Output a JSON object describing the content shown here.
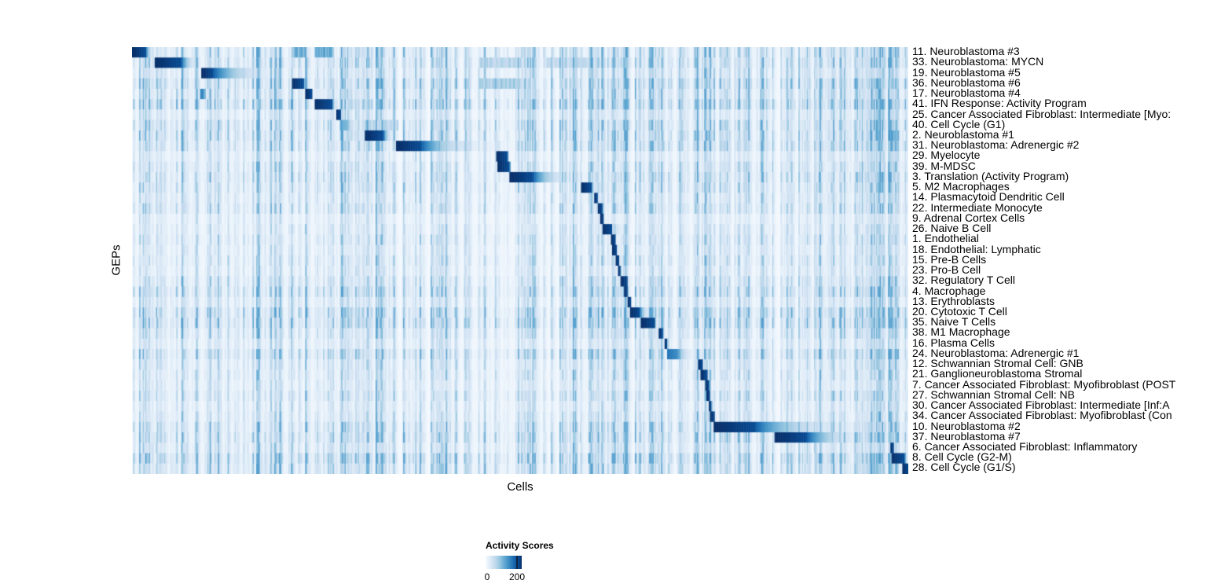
{
  "chart_data": {
    "type": "heatmap",
    "title": "",
    "xlabel": "Cells",
    "ylabel": "GEPs",
    "x_axis": {
      "label": "Cells",
      "tick_labels_shown": false
    },
    "y_axis": {
      "label": "GEPs",
      "row_labels_side": "right"
    },
    "legend": {
      "title": "Activity Scores",
      "position": "bottom-center",
      "tick_labels": [
        "0",
        "200"
      ],
      "min_value": 0,
      "tick_value": 200,
      "bar_max_value": 230
    },
    "colormap": {
      "name": "Blues",
      "low": "#f7fbff",
      "high": "#08306b",
      "stops": [
        "#f7fbff",
        "#deebf7",
        "#c6dbef",
        "#9ecae1",
        "#6baed6",
        "#4292c6",
        "#2171b5",
        "#08519c",
        "#08306b"
      ]
    },
    "grid": false,
    "n_rows": 41,
    "rows": [
      {
        "label": "11. Neuroblastoma #3",
        "block": [
          0.0,
          0.017,
          0.03
        ],
        "head": 1.0,
        "noise": 0.9,
        "extras": [
          [
            0.205,
            0.222,
            0.5
          ],
          [
            0.235,
            0.258,
            0.55
          ]
        ]
      },
      {
        "label": "33. Neuroblastoma: MYCN",
        "block": [
          0.028,
          0.063,
          0.091
        ],
        "head": 1.0,
        "noise": 1.0,
        "extras": [
          [
            0.447,
            0.5,
            0.3
          ],
          [
            0.533,
            0.6,
            0.25
          ]
        ]
      },
      {
        "label": "19. Neuroblastoma #5",
        "block": [
          0.089,
          0.104,
          0.205
        ],
        "head": 1.0,
        "noise": 0.8,
        "extras": []
      },
      {
        "label": "36. Neuroblastoma #6",
        "block": [
          0.205,
          0.22,
          0.228
        ],
        "head": 1.0,
        "noise": 1.1,
        "extras": [
          [
            0.447,
            0.5,
            0.35
          ]
        ]
      },
      {
        "label": "17. Neuroblastoma #4",
        "block": [
          0.223,
          0.231,
          0.233
        ],
        "head": 1.0,
        "noise": 0.9,
        "extras": [
          [
            0.087,
            0.095,
            0.6
          ]
        ]
      },
      {
        "label": "41. IFN Response: Activity Program",
        "block": [
          0.234,
          0.257,
          0.265
        ],
        "head": 1.0,
        "noise": 1.2,
        "extras": []
      },
      {
        "label": "25. Cancer Associated Fibroblast: Intermediate [Myo:",
        "block": [
          0.262,
          0.268,
          0.269
        ],
        "head": 1.0,
        "noise": 0.7,
        "extras": []
      },
      {
        "label": "40. Cell Cycle (G1)",
        "block": [
          0.267,
          0.277,
          0.298
        ],
        "head": 0.5,
        "noise": 1.0,
        "extras": [
          [
            0.3,
            0.342,
            0.3
          ]
        ]
      },
      {
        "label": "2. Neuroblastoma #1",
        "block": [
          0.299,
          0.323,
          0.339
        ],
        "head": 1.0,
        "noise": 1.0,
        "extras": [
          [
            0.974,
            0.984,
            0.55
          ]
        ]
      },
      {
        "label": "31. Neuroblastoma: Adrenergic #2",
        "block": [
          0.339,
          0.372,
          0.469
        ],
        "head": 1.0,
        "noise": 1.0,
        "extras": [
          [
            0.974,
            0.984,
            0.5
          ]
        ]
      },
      {
        "label": "29. Myelocyte",
        "block": [
          0.469,
          0.483,
          0.486
        ],
        "head": 1.0,
        "noise": 0.6,
        "extras": []
      },
      {
        "label": "39. M-MDSC",
        "block": [
          0.47,
          0.486,
          0.488
        ],
        "head": 1.0,
        "noise": 0.8,
        "extras": []
      },
      {
        "label": "3. Translation (Activity Program)",
        "block": [
          0.486,
          0.516,
          0.579
        ],
        "head": 1.0,
        "noise": 0.9,
        "extras": []
      },
      {
        "label": "5. M2 Macrophages",
        "block": [
          0.577,
          0.592,
          0.594
        ],
        "head": 1.0,
        "noise": 0.8,
        "extras": []
      },
      {
        "label": "14. Plasmacytoid Dendritic Cell",
        "block": [
          0.594,
          0.599,
          0.6
        ],
        "head": 1.0,
        "noise": 0.7,
        "extras": []
      },
      {
        "label": "22. Intermediate Monocyte",
        "block": [
          0.599,
          0.605,
          0.606
        ],
        "head": 1.0,
        "noise": 0.8,
        "extras": []
      },
      {
        "label": "9. Adrenal Cortex Cells",
        "block": [
          0.603,
          0.607,
          0.608
        ],
        "head": 1.0,
        "noise": 0.5,
        "extras": []
      },
      {
        "label": "26. Naive B Cell",
        "block": [
          0.605,
          0.617,
          0.618
        ],
        "head": 1.0,
        "noise": 0.6,
        "extras": []
      },
      {
        "label": "1. Endothelial",
        "block": [
          0.616,
          0.622,
          0.623
        ],
        "head": 1.0,
        "noise": 0.7,
        "extras": []
      },
      {
        "label": "18. Endothelial: Lymphatic",
        "block": [
          0.618,
          0.624,
          0.625
        ],
        "head": 1.0,
        "noise": 0.6,
        "extras": []
      },
      {
        "label": "15. Pre-B Cells",
        "block": [
          0.622,
          0.627,
          0.628
        ],
        "head": 1.0,
        "noise": 0.7,
        "extras": []
      },
      {
        "label": "23. Pro-B Cell",
        "block": [
          0.625,
          0.629,
          0.63
        ],
        "head": 1.0,
        "noise": 0.6,
        "extras": []
      },
      {
        "label": "32. Regulatory T Cell",
        "block": [
          0.629,
          0.638,
          0.639
        ],
        "head": 1.0,
        "noise": 0.8,
        "extras": []
      },
      {
        "label": "4. Macrophage",
        "block": [
          0.633,
          0.638,
          0.64
        ],
        "head": 1.0,
        "noise": 1.0,
        "extras": []
      },
      {
        "label": "13. Erythroblasts",
        "block": [
          0.638,
          0.642,
          0.643
        ],
        "head": 1.0,
        "noise": 0.7,
        "extras": []
      },
      {
        "label": "20. Cytotoxic T Cell",
        "block": [
          0.641,
          0.653,
          0.67
        ],
        "head": 1.0,
        "noise": 1.1,
        "extras": []
      },
      {
        "label": "35. Naive T Cells",
        "block": [
          0.655,
          0.673,
          0.676
        ],
        "head": 1.0,
        "noise": 1.1,
        "extras": []
      },
      {
        "label": "38. M1 Macrophage",
        "block": [
          0.677,
          0.683,
          0.686
        ],
        "head": 1.0,
        "noise": 0.8,
        "extras": []
      },
      {
        "label": "16. Plasma Cells",
        "block": [
          0.685,
          0.689,
          0.69
        ],
        "head": 1.0,
        "noise": 0.6,
        "extras": []
      },
      {
        "label": "24. Neuroblastoma: Adrenergic #1",
        "block": [
          0.688,
          0.702,
          0.731
        ],
        "head": 0.72,
        "noise": 1.0,
        "extras": []
      },
      {
        "label": "12. Schwannian Stromal Cell: GNB",
        "block": [
          0.728,
          0.734,
          0.735
        ],
        "head": 1.0,
        "noise": 0.7,
        "extras": []
      },
      {
        "label": "21. Ganglioneuroblastoma Stromal",
        "block": [
          0.732,
          0.74,
          0.741
        ],
        "head": 1.0,
        "noise": 0.7,
        "extras": []
      },
      {
        "label": "7. Cancer Associated Fibroblast: Myofibroblast (POST",
        "block": [
          0.738,
          0.743,
          0.744
        ],
        "head": 1.0,
        "noise": 0.6,
        "extras": []
      },
      {
        "label": "27. Schwannian Stromal Cell: NB",
        "block": [
          0.74,
          0.744,
          0.745
        ],
        "head": 1.0,
        "noise": 0.8,
        "extras": []
      },
      {
        "label": "30. Cancer Associated Fibroblast: Intermediate [Inf:A",
        "block": [
          0.742,
          0.746,
          0.747
        ],
        "head": 1.0,
        "noise": 0.6,
        "extras": []
      },
      {
        "label": "34. Cancer Associated Fibroblast: Myofibroblast (Con",
        "block": [
          0.744,
          0.75,
          0.751
        ],
        "head": 1.0,
        "noise": 0.7,
        "extras": []
      },
      {
        "label": "10. Neuroblastoma #2",
        "block": [
          0.748,
          0.802,
          0.958
        ],
        "head": 1.0,
        "noise": 0.9,
        "extras": []
      },
      {
        "label": "37. Neuroblastoma #7",
        "block": [
          0.827,
          0.869,
          0.96
        ],
        "head": 1.0,
        "noise": 1.0,
        "extras": []
      },
      {
        "label": "6. Cancer Associated Fibroblast: Inflammatory",
        "block": [
          0.976,
          0.98,
          0.981
        ],
        "head": 1.0,
        "noise": 0.8,
        "extras": []
      },
      {
        "label": "8. Cell Cycle (G2-M)",
        "block": [
          0.977,
          0.994,
          0.997
        ],
        "head": 1.0,
        "noise": 1.2,
        "extras": []
      },
      {
        "label": "28. Cell Cycle (G1/S)",
        "block": [
          0.992,
          1.0,
          1.0
        ],
        "head": 1.0,
        "noise": 1.0,
        "extras": []
      }
    ]
  }
}
